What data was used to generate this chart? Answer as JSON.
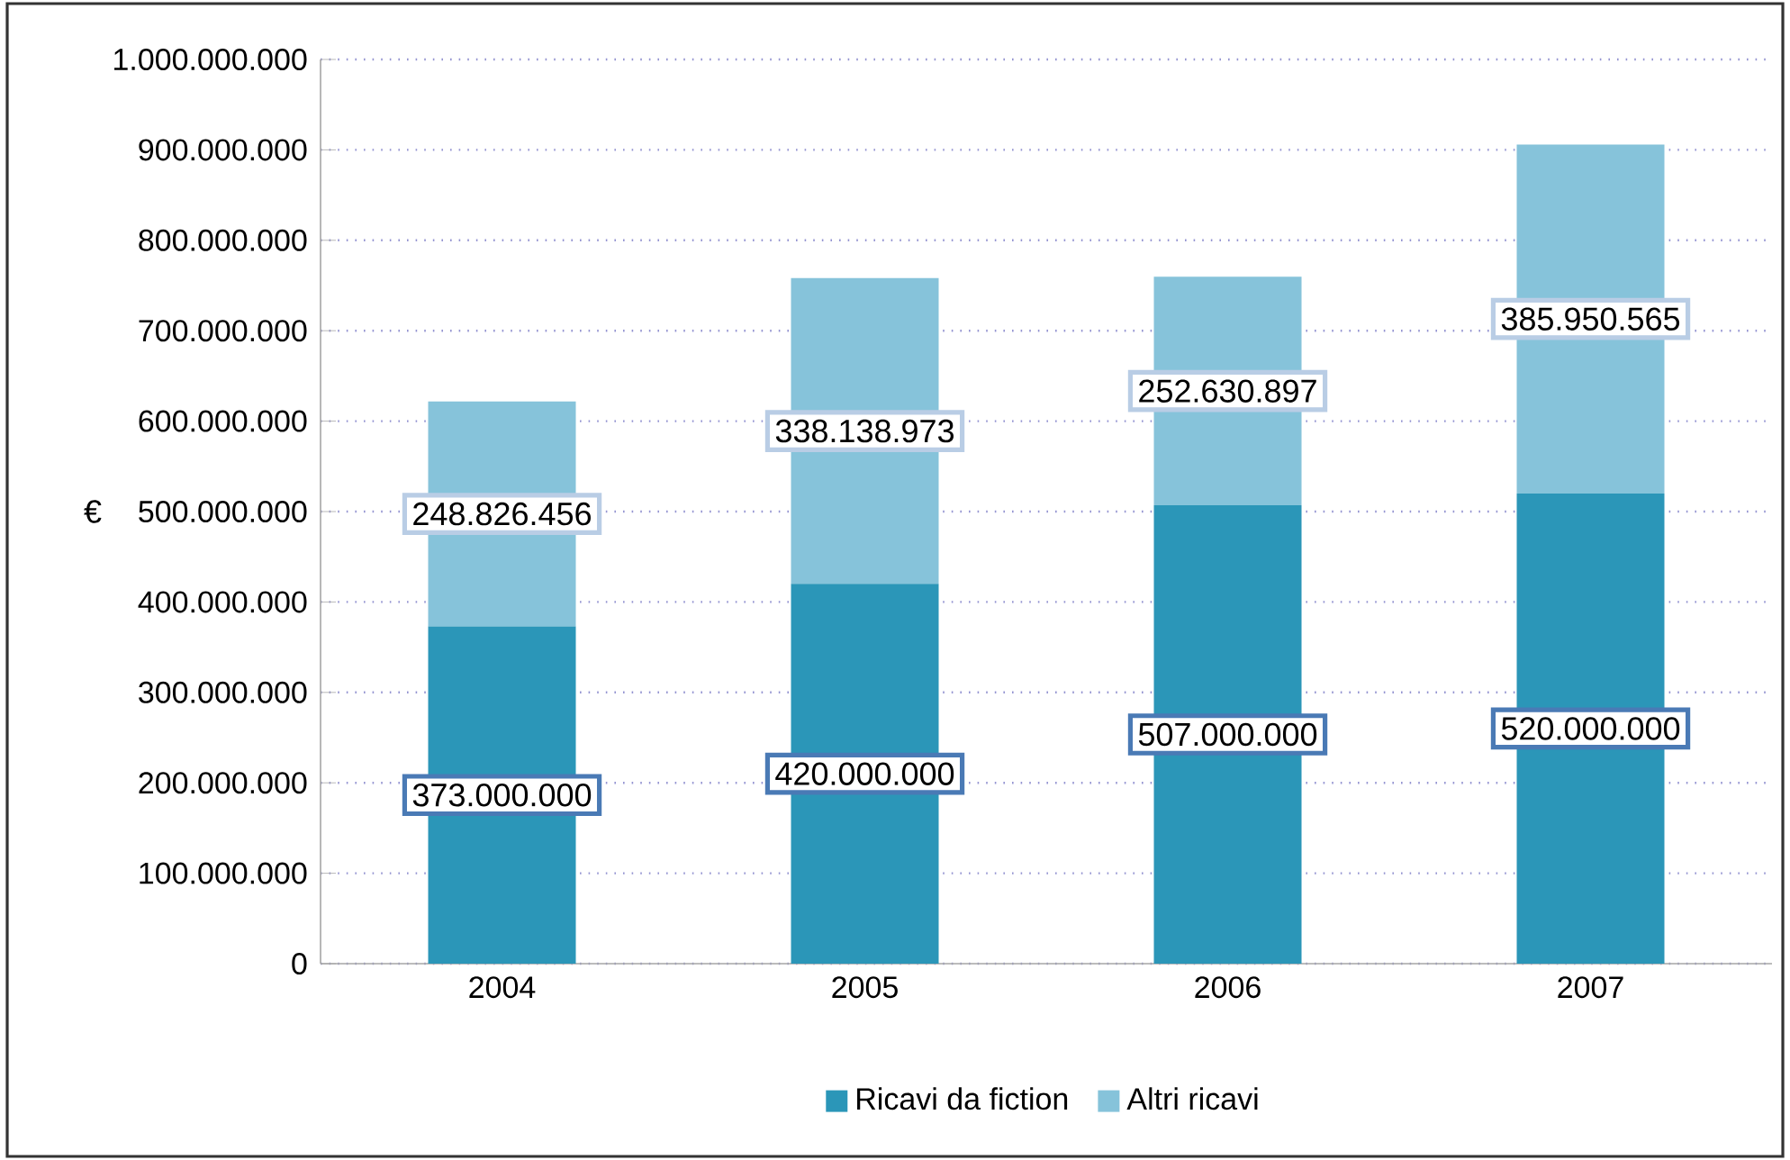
{
  "chart_data": {
    "type": "bar",
    "stacked": true,
    "ylabel": "€",
    "categories": [
      "2004",
      "2005",
      "2006",
      "2007"
    ],
    "series": [
      {
        "name": "Ricavi da fiction",
        "color": "#2b96b8",
        "values": [
          373000000,
          420000000,
          507000000,
          520000000
        ],
        "value_labels": [
          "373.000.000",
          "420.000.000",
          "507.000.000",
          "520.000.000"
        ]
      },
      {
        "name": "Altri ricavi",
        "color": "#86c3da",
        "values": [
          248826456,
          338138973,
          252630897,
          385950565
        ],
        "value_labels": [
          "248.826.456",
          "338.138.973",
          "252.630.897",
          "385.950.565"
        ]
      }
    ],
    "ylim": [
      0,
      1000000000
    ],
    "yticks": [
      {
        "value": 0,
        "label": "0"
      },
      {
        "value": 100000000,
        "label": "100.000.000"
      },
      {
        "value": 200000000,
        "label": "200.000.000"
      },
      {
        "value": 300000000,
        "label": "300.000.000"
      },
      {
        "value": 400000000,
        "label": "400.000.000"
      },
      {
        "value": 500000000,
        "label": "500.000.000"
      },
      {
        "value": 600000000,
        "label": "600.000.000"
      },
      {
        "value": 700000000,
        "label": "700.000.000"
      },
      {
        "value": 800000000,
        "label": "800.000.000"
      },
      {
        "value": 900000000,
        "label": "900.000.000"
      },
      {
        "value": 1000000000,
        "label": "1.000.000.000"
      }
    ],
    "grid": "y",
    "legend": "bottom"
  }
}
